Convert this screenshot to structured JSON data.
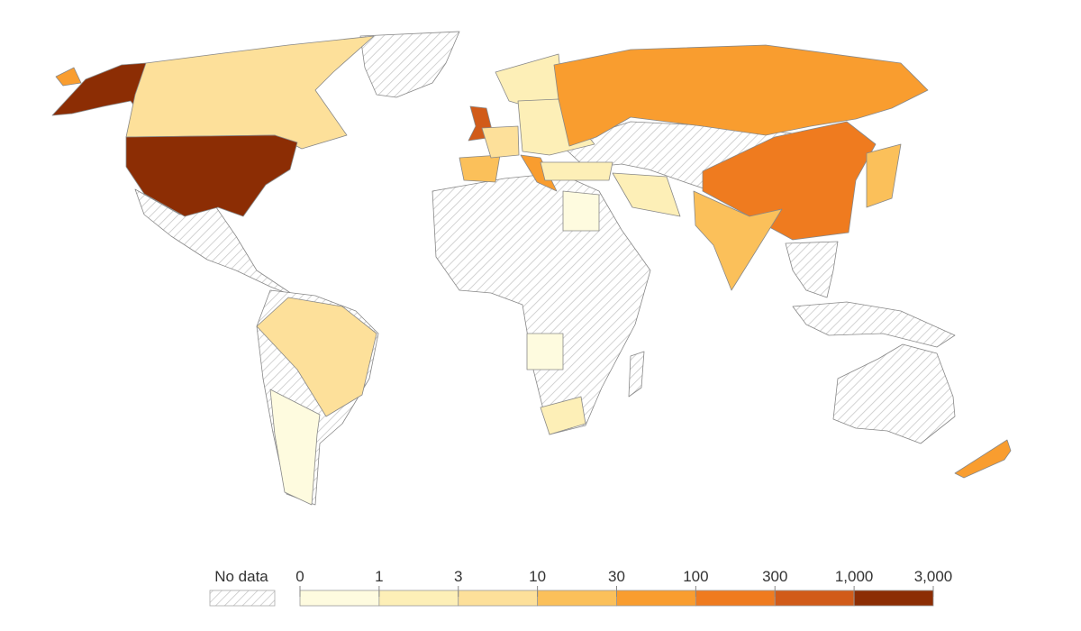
{
  "chart_data": {
    "type": "choropleth",
    "legend": {
      "no_data_label": "No data",
      "ticks": [
        0,
        1,
        3,
        10,
        30,
        100,
        300,
        {
          "value": 1000,
          "label": "1,000"
        },
        {
          "value": 3000,
          "label": "3,000"
        }
      ],
      "colors": [
        "#fefbdf",
        "#fdefb7",
        "#fde09a",
        "#fbc05a",
        "#f99d2f",
        "#ef7b1f",
        "#d15b19",
        "#8c2d04"
      ]
    }
  }
}
